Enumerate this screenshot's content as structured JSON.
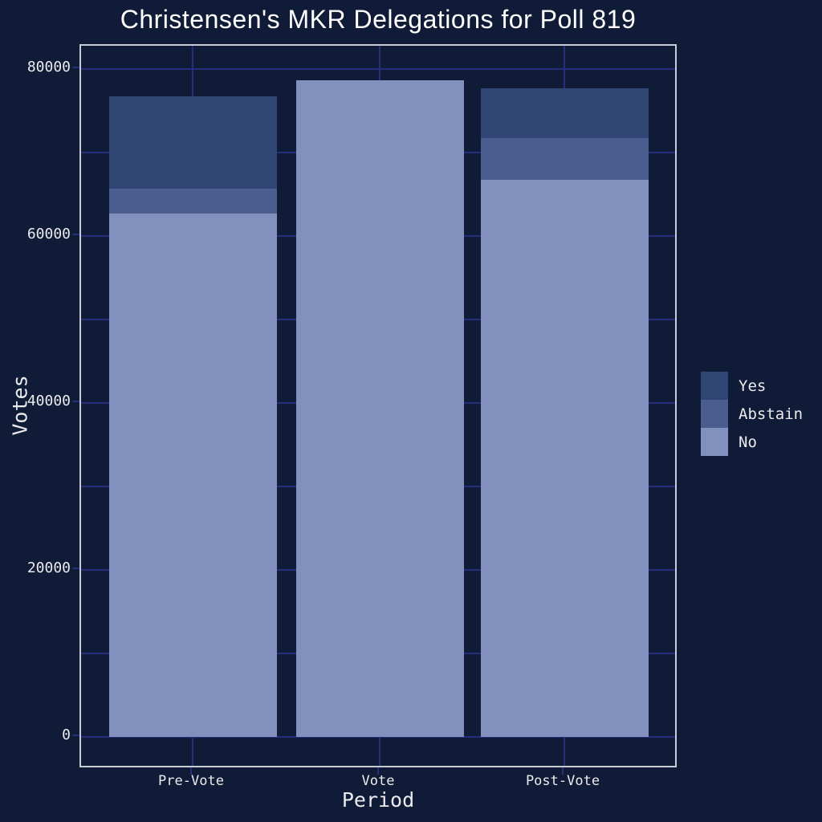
{
  "chart_data": {
    "type": "bar",
    "stacked": true,
    "title": "Christensen's MKR Delegations for Poll 819",
    "xlabel": "Period",
    "ylabel": "Votes",
    "categories": [
      "Pre-Vote",
      "Vote",
      "Post-Vote"
    ],
    "series": [
      {
        "name": "Yes",
        "color": "#2f4573",
        "values": [
          11000,
          0,
          6000
        ]
      },
      {
        "name": "Abstain",
        "color": "#4b5d8f",
        "values": [
          3000,
          0,
          5000
        ]
      },
      {
        "name": "No",
        "color": "#8290bd",
        "values": [
          62700,
          78700,
          66700
        ]
      }
    ],
    "stack_order_bottom_to_top": [
      "No",
      "Abstain",
      "Yes"
    ],
    "totals": {
      "Pre-Vote": 76700,
      "Vote": 78700,
      "Post-Vote": 77700
    },
    "y_ticks": [
      0,
      20000,
      40000,
      60000,
      80000
    ],
    "y_minor_step": 10000,
    "ylim": [
      -3850,
      82800
    ],
    "grid": true,
    "legend": {
      "position": "right",
      "entries": [
        "Yes",
        "Abstain",
        "No"
      ]
    },
    "colors": {
      "background": "#101b37",
      "grid": "#262e7e",
      "axis_border": "#c9ccd6",
      "tick_text": "#ebebee",
      "title_text": "#ffffff"
    }
  }
}
